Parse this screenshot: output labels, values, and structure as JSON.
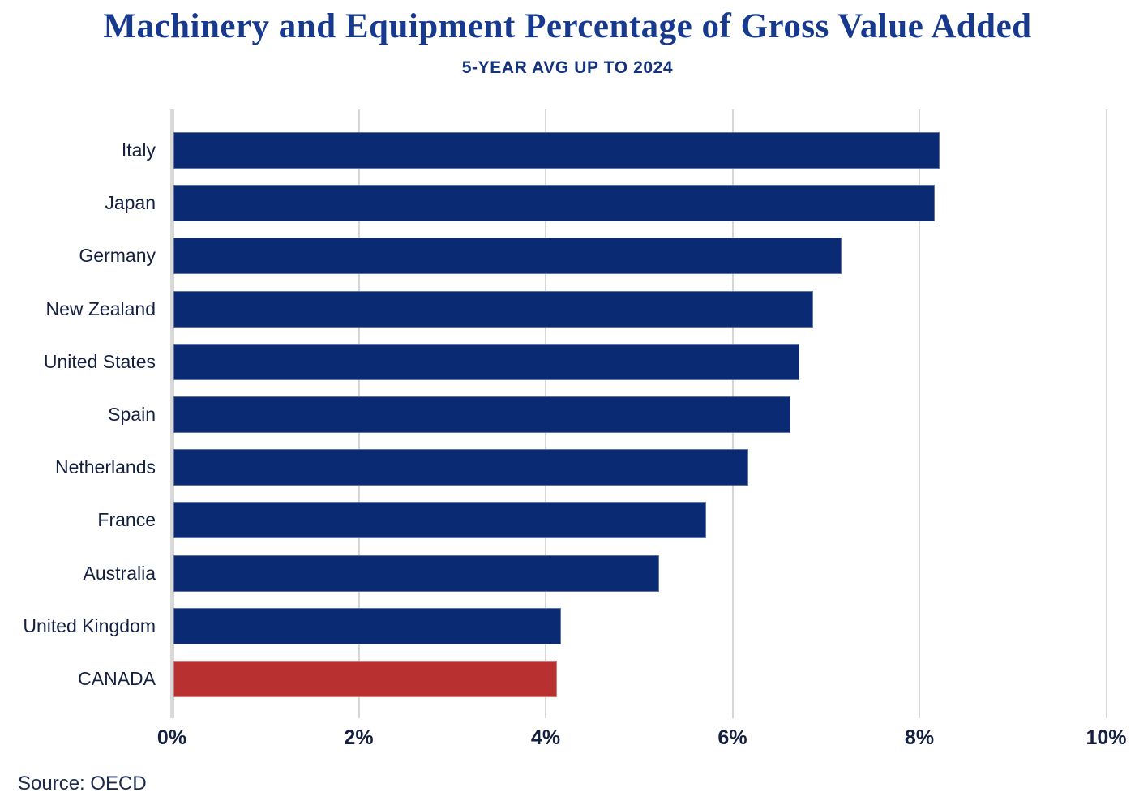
{
  "chart_data": {
    "type": "bar",
    "orientation": "horizontal",
    "title": "Machinery and Equipment Percentage of Gross Value Added",
    "subtitle": "5-YEAR AVG UP TO 2024",
    "source": "Source: OECD",
    "categories": [
      "Italy",
      "Japan",
      "Germany",
      "New Zealand",
      "United States",
      "Spain",
      "Netherlands",
      "France",
      "Australia",
      "United Kingdom",
      "CANADA"
    ],
    "values": [
      8.2,
      8.15,
      7.15,
      6.85,
      6.7,
      6.6,
      6.15,
      5.7,
      5.2,
      4.15,
      4.1
    ],
    "unit": "%",
    "xlim": [
      0,
      10
    ],
    "x_tick_values": [
      0,
      2,
      4,
      6,
      8,
      10
    ],
    "x_tick_labels": [
      "0%",
      "2%",
      "4%",
      "6%",
      "8%",
      "10%"
    ],
    "grid": true,
    "legend": "none",
    "highlight_category": "CANADA",
    "colors": {
      "bar_default": "#0a2a73",
      "bar_highlight": "#b93030",
      "gridline": "#d6d6d6",
      "axis_line": "#d9d9d9",
      "title": "#173a8e",
      "subtitle": "#14337f",
      "labels": "#13203f"
    }
  }
}
